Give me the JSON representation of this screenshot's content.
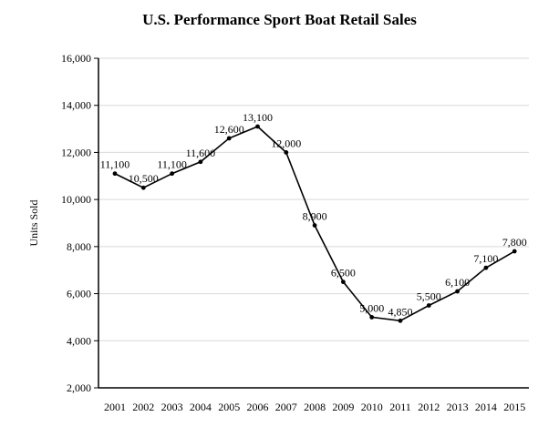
{
  "chart_data": {
    "type": "line",
    "title": "U.S. Performance Sport Boat Retail Sales",
    "xlabel": "",
    "ylabel": "Units Sold",
    "categories": [
      "2001",
      "2002",
      "2003",
      "2004",
      "2005",
      "2006",
      "2007",
      "2008",
      "2009",
      "2010",
      "2011",
      "2012",
      "2013",
      "2014",
      "2015"
    ],
    "series": [
      {
        "name": "Units Sold",
        "values": [
          11100,
          10500,
          11100,
          11600,
          12600,
          13100,
          12000,
          8900,
          6500,
          5000,
          4850,
          5500,
          6100,
          7100,
          7800
        ],
        "labels": [
          "11,100",
          "10,500",
          "11,100",
          "11,600",
          "12,600",
          "13,100",
          "12,000",
          "8,900",
          "6,500",
          "5,000",
          "4,850",
          "5,500",
          "6,100",
          "7,100",
          "7,800"
        ]
      }
    ],
    "ylim": [
      2000,
      16000
    ],
    "yticks": [
      2000,
      4000,
      6000,
      8000,
      10000,
      12000,
      14000,
      16000
    ],
    "ytick_labels": [
      "2,000",
      "4,000",
      "6,000",
      "8,000",
      "10,000",
      "12,000",
      "14,000",
      "16,000"
    ],
    "grid": true,
    "colors": {
      "line": "#000000",
      "grid": "#d9d9d9",
      "axis": "#000000"
    }
  }
}
